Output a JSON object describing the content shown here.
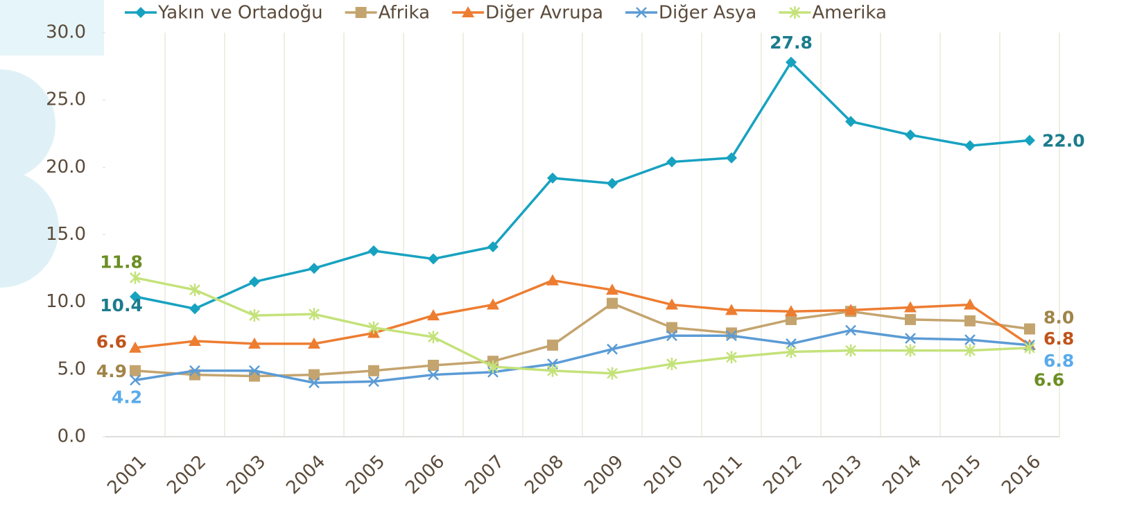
{
  "chart_data": {
    "type": "line",
    "categories": [
      "2001",
      "2002",
      "2003",
      "2004",
      "2005",
      "2006",
      "2007",
      "2008",
      "2009",
      "2010",
      "2011",
      "2012",
      "2013",
      "2014",
      "2015",
      "2016"
    ],
    "series": [
      {
        "name": "Yakın ve Ortadoğu",
        "color": "#17a2c0",
        "label_color": "#1b7c8c",
        "marker": "diamond",
        "values": [
          10.4,
          9.5,
          11.5,
          12.5,
          13.8,
          13.2,
          14.1,
          19.2,
          18.8,
          20.4,
          20.7,
          27.8,
          23.4,
          22.4,
          21.6,
          22.0
        ],
        "value_labels": [
          "10.4",
          null,
          null,
          null,
          null,
          null,
          null,
          null,
          null,
          null,
          null,
          "27.8",
          null,
          null,
          null,
          "22.0"
        ]
      },
      {
        "name": "Afrika",
        "color": "#c4a46e",
        "label_color": "#a08448",
        "marker": "square",
        "values": [
          4.9,
          4.6,
          4.5,
          4.6,
          4.9,
          5.3,
          5.6,
          6.8,
          9.9,
          8.1,
          7.7,
          8.7,
          9.3,
          8.7,
          8.6,
          8.0
        ],
        "value_labels": [
          "4.9",
          null,
          null,
          null,
          null,
          null,
          null,
          null,
          null,
          null,
          null,
          null,
          null,
          null,
          null,
          "8.0"
        ]
      },
      {
        "name": "Diğer Avrupa",
        "color": "#ed7d31",
        "label_color": "#c0541a",
        "marker": "triangle",
        "values": [
          6.6,
          7.1,
          6.9,
          6.9,
          7.7,
          9.0,
          9.8,
          11.6,
          10.9,
          9.8,
          9.4,
          9.3,
          9.4,
          9.6,
          9.8,
          6.8
        ],
        "value_labels": [
          "6.6",
          null,
          null,
          null,
          null,
          null,
          null,
          null,
          null,
          null,
          null,
          null,
          null,
          null,
          null,
          "6.8"
        ]
      },
      {
        "name": "Diğer Asya",
        "color": "#5b9bd5",
        "label_color": "#5aabea",
        "marker": "x",
        "values": [
          4.2,
          4.9,
          4.9,
          4.0,
          4.1,
          4.6,
          4.8,
          5.4,
          6.5,
          7.5,
          7.5,
          6.9,
          7.9,
          7.3,
          7.2,
          6.8
        ],
        "value_labels": [
          "4.2",
          null,
          null,
          null,
          null,
          null,
          null,
          null,
          null,
          null,
          null,
          null,
          null,
          null,
          null,
          "6.8"
        ]
      },
      {
        "name": "Amerika",
        "color": "#c4e27a",
        "label_color": "#6b8e23",
        "marker": "star",
        "values": [
          11.8,
          10.9,
          9.0,
          9.1,
          8.1,
          7.4,
          5.2,
          4.9,
          4.7,
          5.4,
          5.9,
          6.3,
          6.4,
          6.4,
          6.4,
          6.6
        ],
        "value_labels": [
          "11.8",
          null,
          null,
          null,
          null,
          null,
          null,
          null,
          null,
          null,
          null,
          null,
          null,
          null,
          null,
          "6.6"
        ]
      }
    ],
    "ylim": [
      0,
      30
    ],
    "yticks": [
      {
        "value": 0,
        "label": "0.0"
      },
      {
        "value": 5,
        "label": "5.0"
      },
      {
        "value": 10,
        "label": "10.0"
      },
      {
        "value": 15,
        "label": "15.0"
      },
      {
        "value": 20,
        "label": "20.0"
      },
      {
        "value": 25,
        "label": "25.0"
      },
      {
        "value": 30,
        "label": "30.0"
      }
    ],
    "grid": "x",
    "legend": "top"
  }
}
